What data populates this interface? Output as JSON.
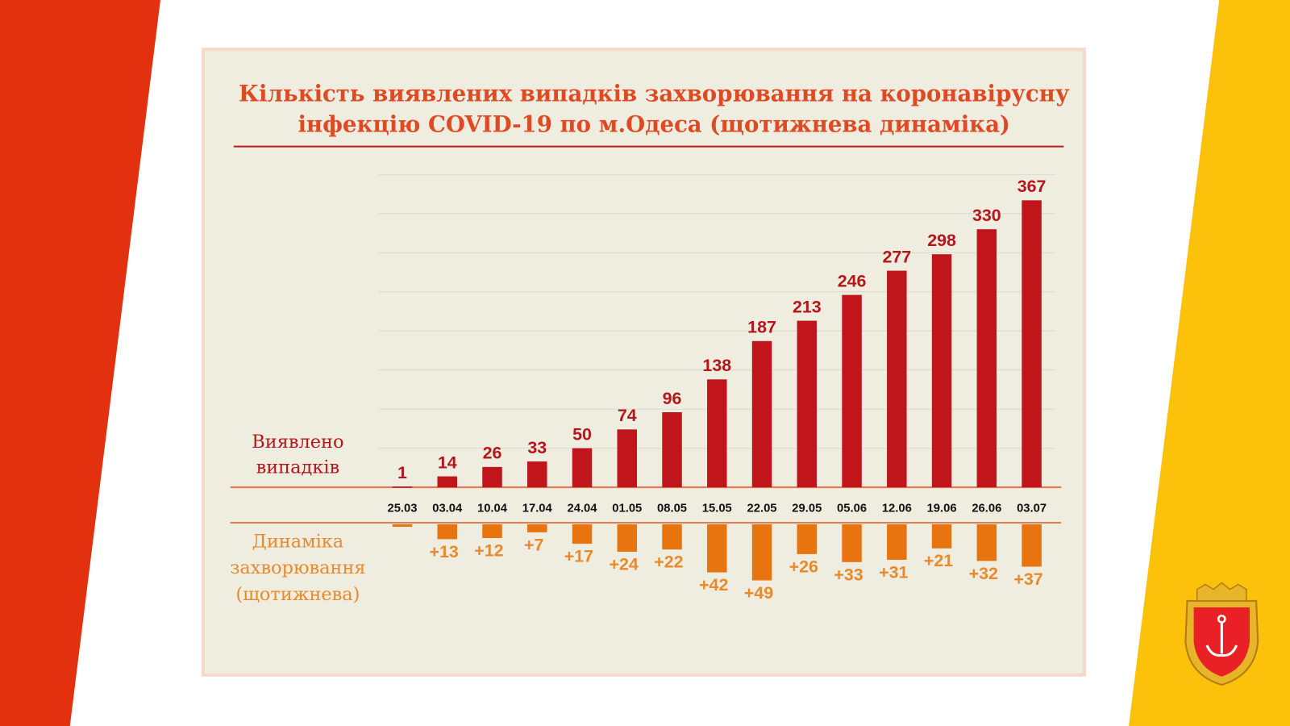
{
  "chart_data": {
    "type": "bar",
    "title": "Кількість виявлених випадків захворювання на коронавірусну інфекцію COVID-19 по м.Одеса (щотижнева динаміка)",
    "title_lines": [
      "Кількість виявлених випадків захворювання на коронавірусну",
      "інфекцію COVID-19 по м.Одеса (щотижнева динаміка)"
    ],
    "categories": [
      "25.03",
      "03.04",
      "10.04",
      "17.04",
      "24.04",
      "01.05",
      "08.05",
      "15.05",
      "22.05",
      "29.05",
      "05.06",
      "12.06",
      "19.06",
      "26.06",
      "03.07"
    ],
    "series": [
      {
        "name": "Виявлено випадків",
        "name_lines": [
          "Виявлено",
          "випадків"
        ],
        "color": "#c0161b",
        "values": [
          1,
          14,
          26,
          33,
          50,
          74,
          96,
          138,
          187,
          213,
          246,
          277,
          298,
          330,
          367
        ],
        "labels": [
          "1",
          "14",
          "26",
          "33",
          "50",
          "74",
          "96",
          "138",
          "187",
          "213",
          "246",
          "277",
          "298",
          "330",
          "367"
        ]
      },
      {
        "name": "Динаміка захворювання (щотижнева)",
        "name_lines": [
          "Динаміка",
          "захворювання",
          "(щотижнева)"
        ],
        "color": "#e8740f",
        "values": [
          1,
          13,
          12,
          7,
          17,
          24,
          22,
          42,
          49,
          26,
          33,
          31,
          21,
          32,
          37
        ],
        "labels": [
          "",
          "+13",
          "+12",
          "+7",
          "+17",
          "+24",
          "+22",
          "+42",
          "+49",
          "+26",
          "+33",
          "+31",
          "+21",
          "+32",
          "+37"
        ]
      }
    ],
    "ylim": [
      0,
      400
    ],
    "grid": true
  },
  "colors": {
    "left_band": "#e3300e",
    "right_band": "#fcc10a",
    "panel": "#efeddf",
    "title": "#e04a23"
  },
  "logo": {
    "name": "Odesa coat of arms",
    "icon": "anchor-shield-icon"
  }
}
